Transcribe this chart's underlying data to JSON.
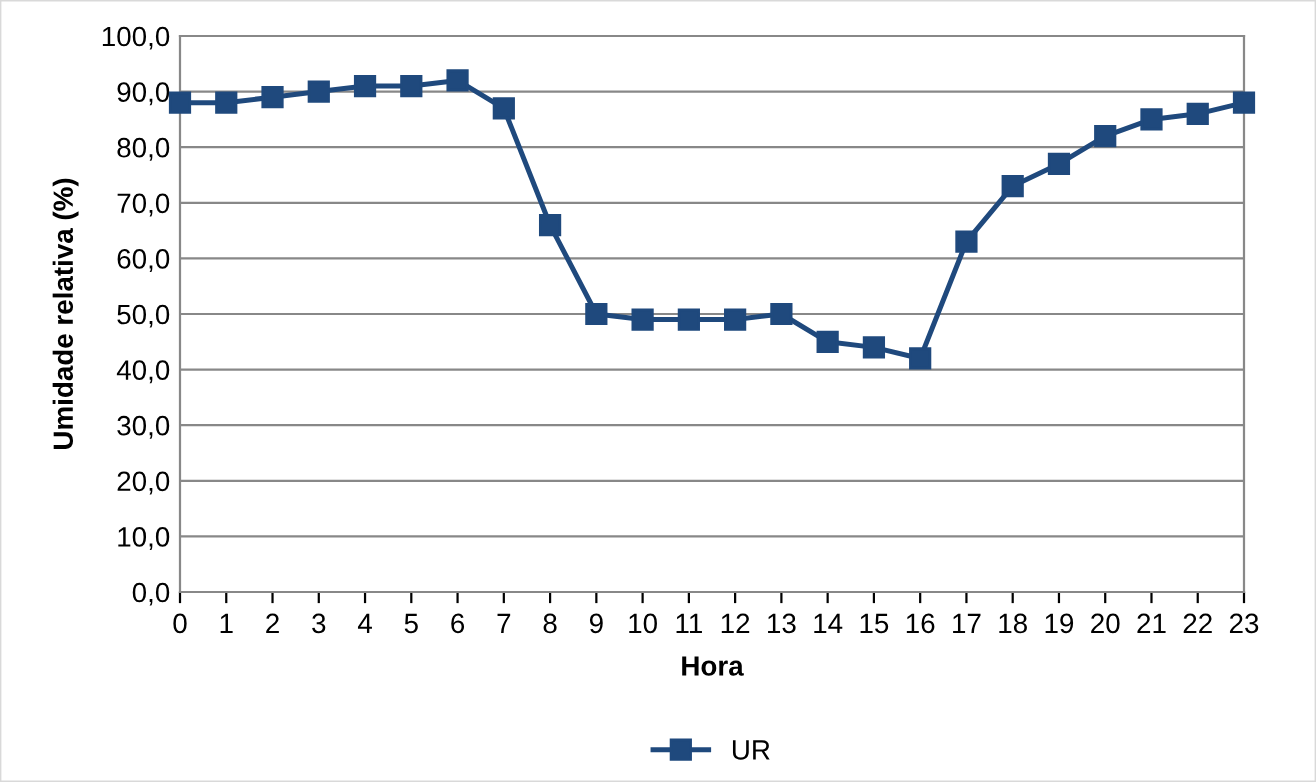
{
  "chart_data": {
    "type": "line",
    "xlabel": "Hora",
    "ylabel": "Umidade relativa (%)",
    "x": [
      0,
      1,
      2,
      3,
      4,
      5,
      6,
      7,
      8,
      9,
      10,
      11,
      12,
      13,
      14,
      15,
      16,
      17,
      18,
      19,
      20,
      21,
      22,
      23
    ],
    "series": [
      {
        "name": "UR",
        "color": "#1f497d",
        "values": [
          88,
          88,
          89,
          90,
          91,
          91,
          92,
          87,
          66,
          50,
          49,
          49,
          49,
          50,
          45,
          44,
          42,
          63,
          73,
          77,
          82,
          85,
          86,
          88
        ]
      }
    ],
    "xlim": [
      0,
      23
    ],
    "xticks": [
      0,
      1,
      2,
      3,
      4,
      5,
      6,
      7,
      8,
      9,
      10,
      11,
      12,
      13,
      14,
      15,
      16,
      17,
      18,
      19,
      20,
      21,
      22,
      23
    ],
    "ylim": [
      0,
      100
    ],
    "yticks": [
      {
        "value": 0,
        "label": "0,0"
      },
      {
        "value": 10,
        "label": "10,0"
      },
      {
        "value": 20,
        "label": "20,0"
      },
      {
        "value": 30,
        "label": "30,0"
      },
      {
        "value": 40,
        "label": "40,0"
      },
      {
        "value": 50,
        "label": "50,0"
      },
      {
        "value": 60,
        "label": "60,0"
      },
      {
        "value": 70,
        "label": "70,0"
      },
      {
        "value": 80,
        "label": "80,0"
      },
      {
        "value": 90,
        "label": "90,0"
      },
      {
        "value": 100,
        "label": "100,0"
      }
    ],
    "grid": "y",
    "legend": "bottom",
    "marker": "square",
    "line_style": "solid"
  }
}
